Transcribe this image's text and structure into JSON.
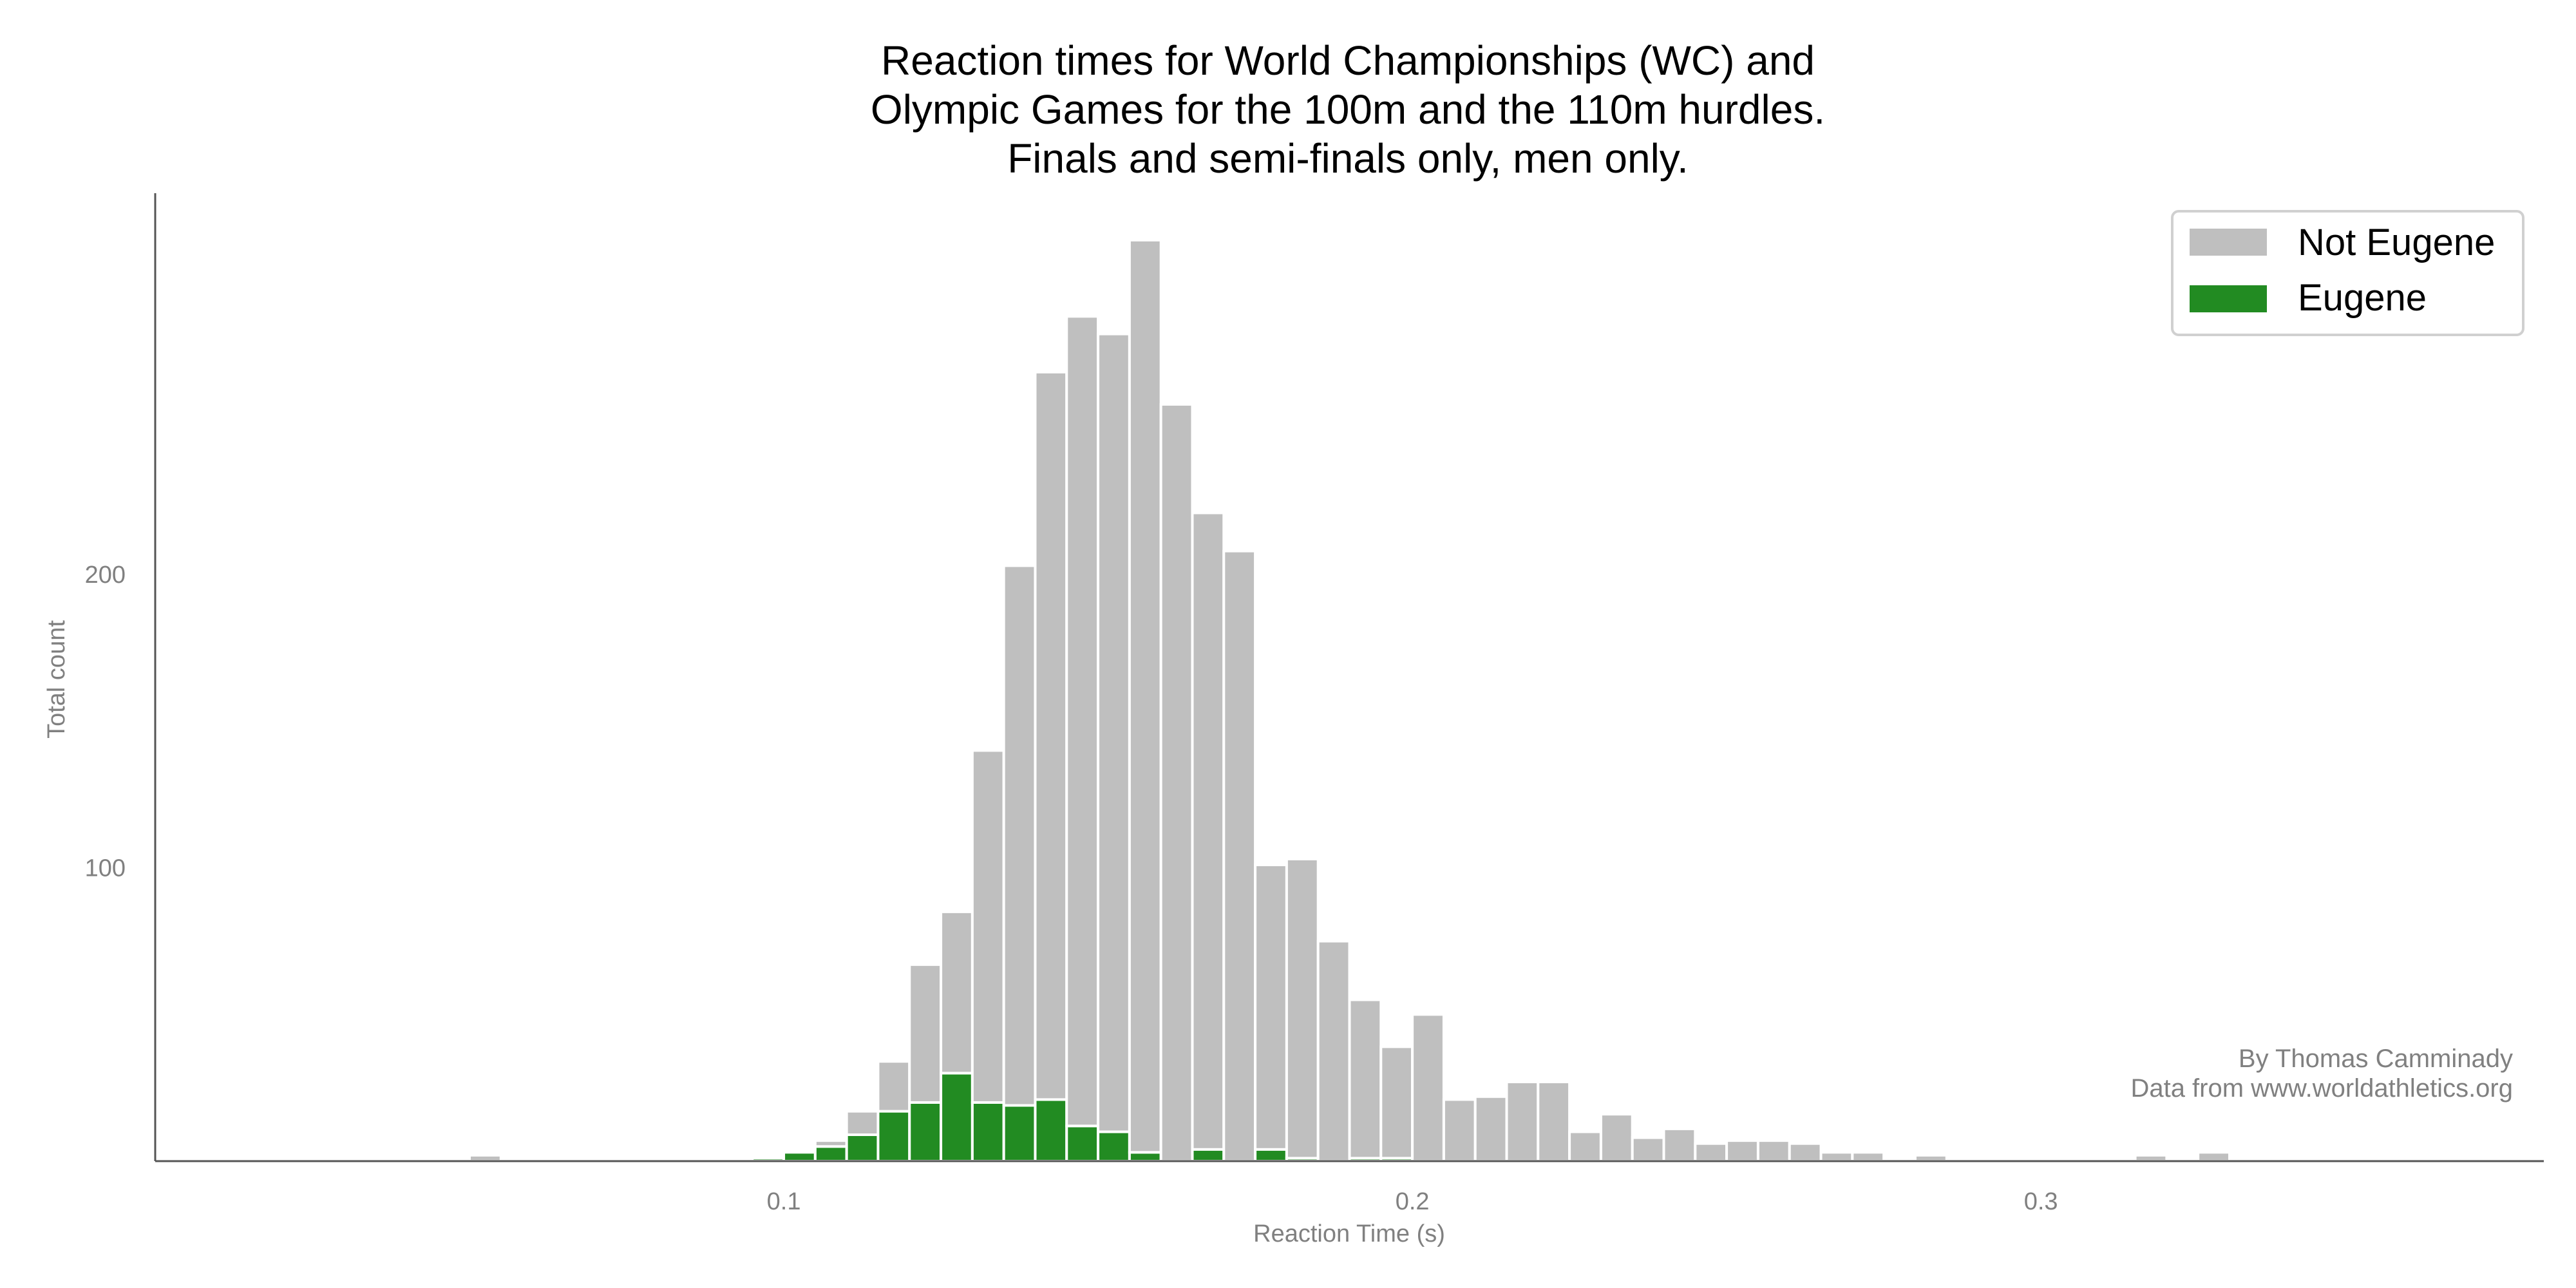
{
  "chart_data": {
    "type": "bar",
    "subtype": "stacked-histogram",
    "title_lines": [
      "Reaction times for World Championships (WC) and",
      "Olympic Games for the 100m and the 110m hurdles.",
      "Finals and semi-finals only, men only."
    ],
    "xlabel": "Reaction Time (s)",
    "ylabel": "Total count",
    "xlim": [
      0,
      0.38
    ],
    "ylim": [
      0,
      330
    ],
    "xticks": [
      0.1,
      0.2,
      0.3
    ],
    "xtick_labels": [
      "0.1",
      "0.2",
      "0.3"
    ],
    "yticks": [
      100,
      200
    ],
    "ytick_labels": [
      "100",
      "200"
    ],
    "bin_width": 0.005,
    "bin_starts": [
      0.05,
      0.095,
      0.1,
      0.105,
      0.11,
      0.115,
      0.12,
      0.125,
      0.13,
      0.135,
      0.14,
      0.145,
      0.15,
      0.155,
      0.16,
      0.165,
      0.17,
      0.175,
      0.18,
      0.185,
      0.19,
      0.195,
      0.2,
      0.205,
      0.21,
      0.215,
      0.22,
      0.225,
      0.23,
      0.235,
      0.24,
      0.245,
      0.25,
      0.255,
      0.26,
      0.265,
      0.27,
      0.28,
      0.315,
      0.325
    ],
    "series": [
      {
        "name": "Eugene",
        "color": "#228B22",
        "values": [
          0,
          1,
          3,
          5,
          9,
          17,
          20,
          30,
          20,
          19,
          21,
          12,
          10,
          3,
          0,
          4,
          0,
          4,
          1,
          0,
          1,
          1,
          0,
          0,
          0,
          0,
          0,
          0,
          0,
          0,
          0,
          0,
          0,
          0,
          0,
          0,
          0,
          0,
          0,
          0
        ]
      },
      {
        "name": "Not Eugene",
        "color": "#BFBFBF",
        "values": [
          2,
          0,
          0,
          2,
          8,
          17,
          47,
          55,
          120,
          184,
          248,
          276,
          272,
          311,
          258,
          217,
          208,
          97,
          102,
          75,
          54,
          38,
          50,
          21,
          22,
          27,
          27,
          10,
          16,
          8,
          11,
          6,
          7,
          7,
          6,
          3,
          3,
          2,
          2,
          3
        ]
      }
    ],
    "legend": {
      "location": "top-right",
      "entries": [
        {
          "label": "Not Eugene",
          "color": "#BFBFBF"
        },
        {
          "label": "Eugene",
          "color": "#228B22"
        }
      ]
    },
    "grid": false,
    "annotation_lines": [
      "By Thomas Camminady",
      "Data from www.worldathletics.org"
    ]
  }
}
